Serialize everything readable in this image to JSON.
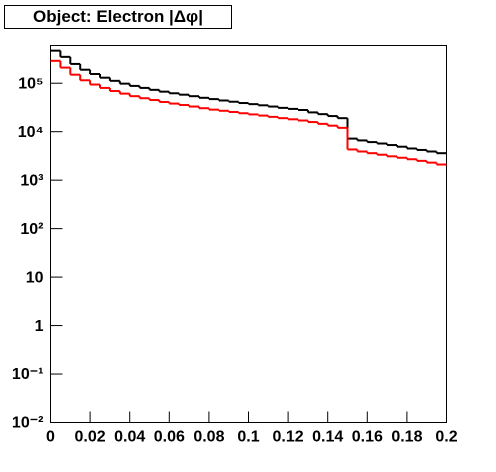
{
  "chart_data": {
    "type": "histogram",
    "title": "Object: Electron |Δφ|",
    "bins": [
      0,
      0.005,
      0.01,
      0.015,
      0.02,
      0.025,
      0.03,
      0.035,
      0.04,
      0.045,
      0.05,
      0.055,
      0.06,
      0.065,
      0.07,
      0.075,
      0.08,
      0.085,
      0.09,
      0.095,
      0.1,
      0.105,
      0.11,
      0.115,
      0.12,
      0.125,
      0.13,
      0.135,
      0.14,
      0.145,
      0.15,
      0.155,
      0.16,
      0.165,
      0.17,
      0.175,
      0.18,
      0.185,
      0.19,
      0.195,
      0.2
    ],
    "series": [
      {
        "color": "#000000",
        "values": [
          470000,
          350000,
          250000,
          190000,
          155000,
          130000,
          112000,
          98000,
          88000,
          80000,
          73000,
          67000,
          62000,
          58000,
          54000,
          50000,
          47000,
          44000,
          41500,
          39000,
          37000,
          35000,
          33000,
          31000,
          29500,
          28000,
          25000,
          23000,
          21000,
          19000,
          7200,
          6600,
          6100,
          5700,
          5300,
          4900,
          4500,
          4200,
          3900,
          3600
        ]
      },
      {
        "color": "#ff0000",
        "values": [
          290000,
          210000,
          150000,
          115000,
          94000,
          80000,
          69000,
          61000,
          54000,
          49000,
          45000,
          41000,
          38000,
          35500,
          33000,
          30500,
          28500,
          27000,
          25500,
          24000,
          22700,
          21500,
          20200,
          19000,
          18000,
          17000,
          15800,
          14500,
          13300,
          12000,
          4300,
          3900,
          3600,
          3350,
          3100,
          2900,
          2700,
          2500,
          2300,
          2100
        ]
      }
    ],
    "xlim": [
      0,
      0.2
    ],
    "xticks": [
      0,
      0.02,
      0.04,
      0.06,
      0.08,
      0.1,
      0.12,
      0.14,
      0.16,
      0.18,
      0.2
    ],
    "ylim": [
      0.01,
      600000
    ],
    "yscale": "log",
    "yticks": [
      {
        "value": 0.01,
        "label": "10⁻²"
      },
      {
        "value": 0.1,
        "label": "10⁻¹"
      },
      1,
      10,
      {
        "value": 100,
        "label": "10²"
      },
      {
        "value": 1000,
        "label": "10³"
      },
      {
        "value": 10000,
        "label": "10⁴"
      },
      {
        "value": 100000,
        "label": "10⁵"
      }
    ]
  }
}
